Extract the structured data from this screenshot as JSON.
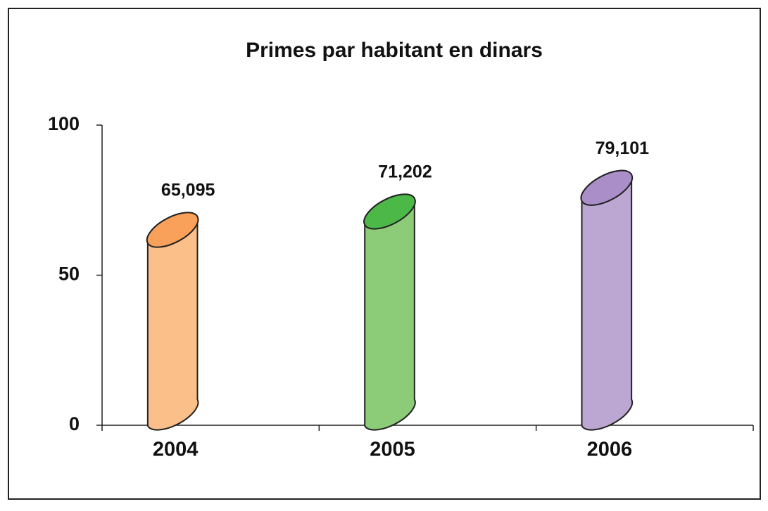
{
  "chart_data": {
    "type": "cylinder",
    "title": "Primes par habitant en dinars",
    "categories": [
      "2004",
      "2005",
      "2006"
    ],
    "values": [
      65.095,
      71.202,
      79.101
    ],
    "value_labels": [
      "65,095",
      "71,202",
      "79,101"
    ],
    "colors": [
      "#fbbf8a",
      "#8ccc78",
      "#bca6d2"
    ],
    "top_colors": [
      "#f9a15a",
      "#4cb848",
      "#a98ec8"
    ],
    "ylim": [
      0,
      100
    ],
    "yticks": [
      0,
      50,
      100
    ]
  }
}
